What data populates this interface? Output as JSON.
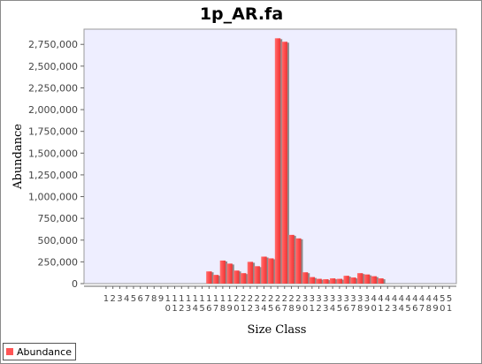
{
  "chart_data": {
    "type": "bar",
    "title": "1p_AR.fa",
    "xlabel": "Size Class",
    "ylabel": "Abundance",
    "ylim": [
      0,
      2925000
    ],
    "yticks": [
      0,
      250000,
      500000,
      750000,
      1000000,
      1250000,
      1500000,
      1750000,
      2000000,
      2250000,
      2500000,
      2750000
    ],
    "ytick_labels": [
      "0",
      "250,000",
      "500,000",
      "750,000",
      "1,000,000",
      "1,250,000",
      "1,500,000",
      "1,750,000",
      "2,000,000",
      "2,250,000",
      "2,500,000",
      "2,750,000"
    ],
    "categories": [
      "1",
      "2",
      "3",
      "4",
      "5",
      "6",
      "7",
      "8",
      "9",
      "10",
      "11",
      "12",
      "13",
      "14",
      "15",
      "16",
      "17",
      "18",
      "19",
      "20",
      "21",
      "22",
      "23",
      "24",
      "25",
      "26",
      "27",
      "28",
      "29",
      "30",
      "31",
      "32",
      "33",
      "34",
      "35",
      "36",
      "37",
      "38",
      "39",
      "40",
      "41",
      "42",
      "43",
      "44",
      "45",
      "46",
      "47",
      "48",
      "49",
      "50",
      "51"
    ],
    "legend_position": "bottom-left",
    "grid": false,
    "series": [
      {
        "name": "Abundance",
        "color": "#ff5555",
        "values": [
          0,
          0,
          0,
          0,
          0,
          0,
          0,
          0,
          0,
          0,
          0,
          0,
          0,
          0,
          0,
          140000,
          100000,
          265000,
          230000,
          150000,
          120000,
          250000,
          200000,
          310000,
          290000,
          2820000,
          2780000,
          560000,
          520000,
          130000,
          75000,
          55000,
          50000,
          60000,
          55000,
          90000,
          70000,
          120000,
          105000,
          85000,
          60000,
          0,
          0,
          0,
          0,
          0,
          0,
          0,
          0,
          0,
          0
        ]
      }
    ]
  }
}
